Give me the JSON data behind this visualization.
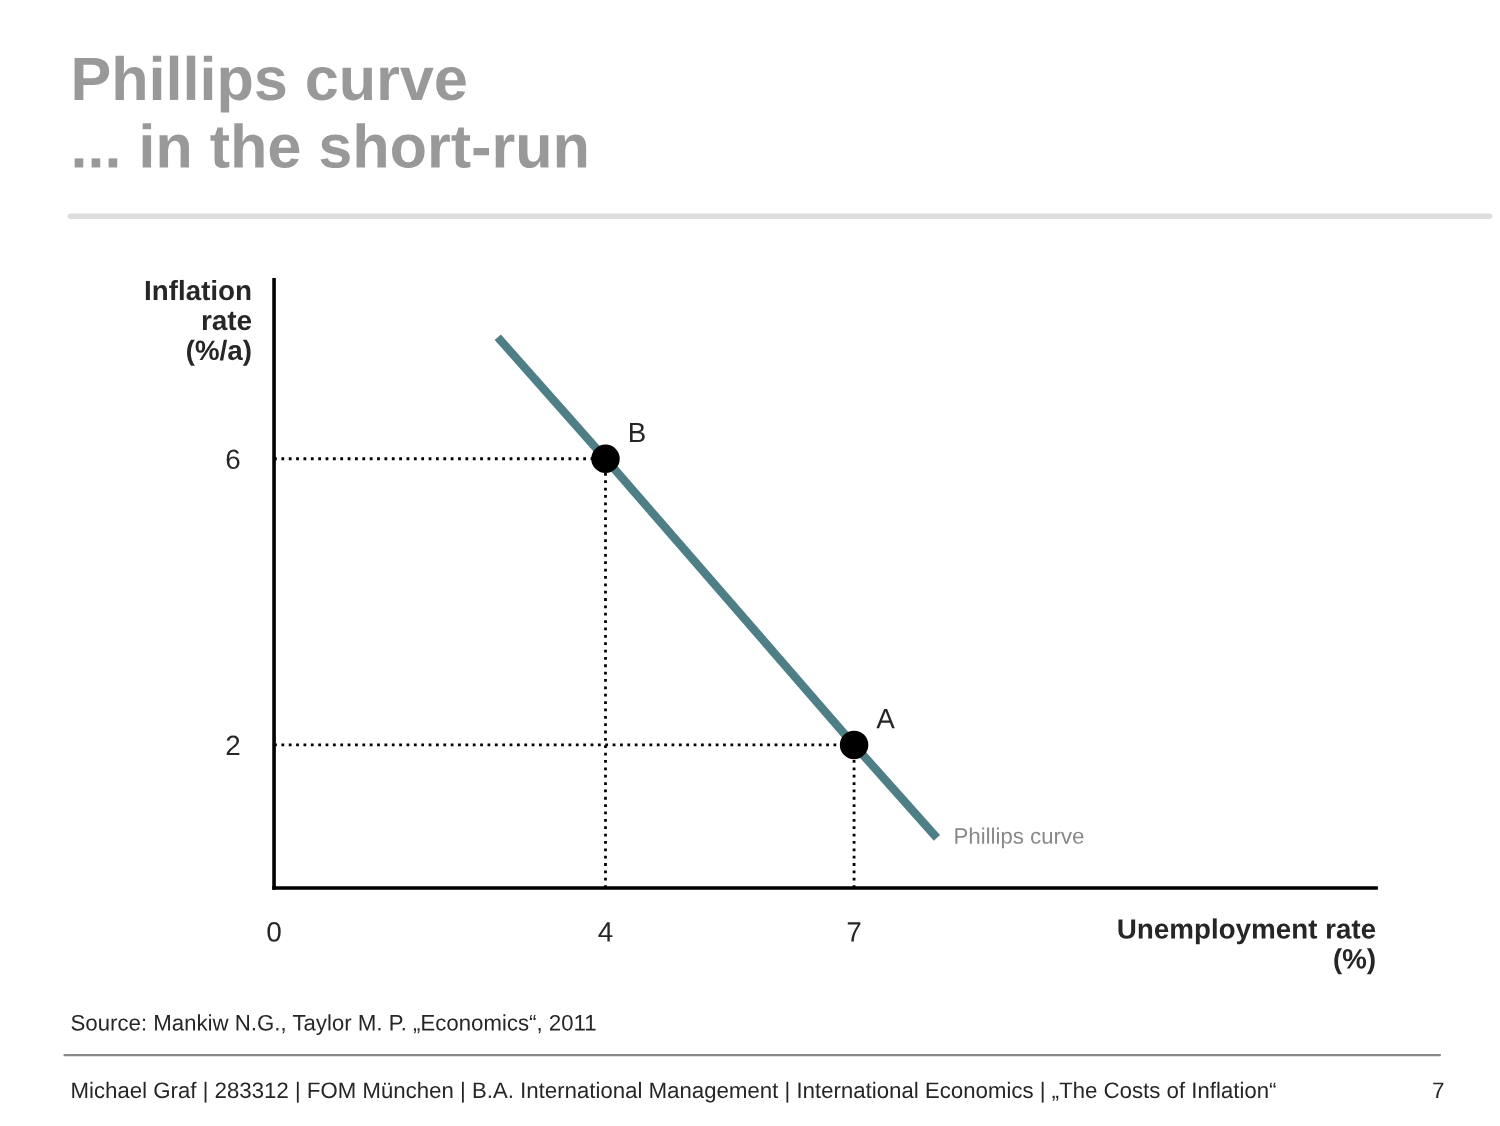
{
  "chart_data": {
    "type": "line",
    "title": "Phillips curve",
    "subtitle": "... in the short-run",
    "xlabel": "Unemployment rate\n(%)",
    "ylabel": "Inflation\nrate\n(%/a)",
    "xlim": [
      0,
      13.3
    ],
    "ylim": [
      0,
      8.5
    ],
    "xticks": [
      0,
      4,
      7
    ],
    "yticks": [
      2,
      6
    ],
    "grid": false,
    "series": [
      {
        "name": "Phillips curve",
        "color": "#4f7f86",
        "x": [
          2.7,
          4,
          7,
          8
        ],
        "values": [
          7.7,
          6,
          2,
          0.7
        ],
        "marker": "none"
      },
      {
        "type": "scatter",
        "color": "#000000",
        "x": [
          4,
          7
        ],
        "values": [
          6,
          2
        ],
        "marker": "circle"
      }
    ],
    "ref_lines": [
      {
        "axis": "x",
        "value": 4,
        "color": "#000000",
        "line_style": "dotted"
      },
      {
        "axis": "x",
        "value": 7,
        "color": "#000000",
        "line_style": "dotted"
      },
      {
        "axis": "y",
        "value": 6,
        "color": "#000000",
        "line_style": "dotted"
      },
      {
        "axis": "y",
        "value": 2,
        "color": "#000000",
        "line_style": "dotted"
      }
    ],
    "annotations": [
      {
        "text": "B",
        "x": 4,
        "y": 6
      },
      {
        "text": "A",
        "x": 7,
        "y": 2
      },
      "Source: Mankiw N.G., Taylor M. P. „Economics“, 2011",
      "Michael Graf | 283312 | FOM München | B.A. International Management | International Economics | „The Costs of Inflation“",
      "7"
    ]
  }
}
